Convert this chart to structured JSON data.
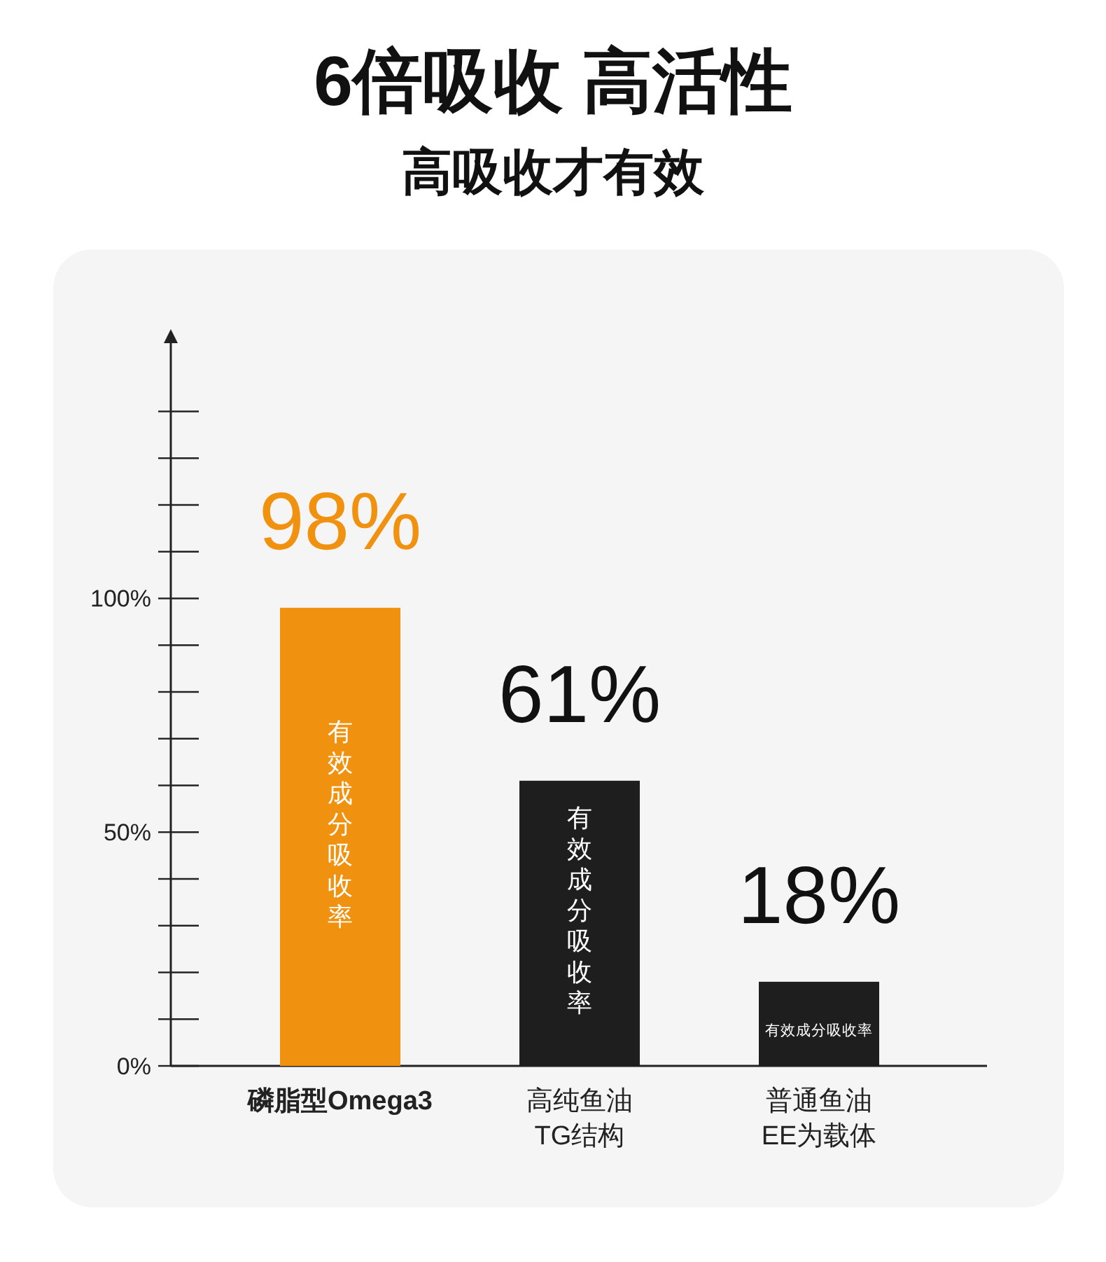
{
  "chart_data": {
    "type": "bar",
    "title": "6倍吸收 高活性",
    "subtitle": "高吸收才有效",
    "categories": [
      "磷脂型Omega3",
      "高纯鱼油\nTG结构",
      "普通鱼油\nEE为载体"
    ],
    "values": [
      98,
      61,
      18
    ],
    "colors": [
      "#f0920f",
      "#1e1e1e",
      "#1e1e1e"
    ],
    "value_labels": [
      "98%",
      "61%",
      "18%"
    ],
    "ylim": [
      0,
      157
    ],
    "yticks": [
      {
        "value": 0,
        "label": "0%"
      },
      {
        "value": 10,
        "label": null
      },
      {
        "value": 20,
        "label": null
      },
      {
        "value": 30,
        "label": null
      },
      {
        "value": 40,
        "label": null
      },
      {
        "value": 50,
        "label": "50%"
      },
      {
        "value": 60,
        "label": null
      },
      {
        "value": 70,
        "label": null
      },
      {
        "value": 80,
        "label": null
      },
      {
        "value": 90,
        "label": null
      },
      {
        "value": 100,
        "label": "100%"
      },
      {
        "value": 110,
        "label": null
      },
      {
        "value": 120,
        "label": null
      },
      {
        "value": 130,
        "label": null
      },
      {
        "value": 140,
        "label": null
      }
    ],
    "annotations": [
      "有效成分吸收率",
      "有效成分吸收率",
      "有效成分吸收率"
    ],
    "grid": false
  }
}
